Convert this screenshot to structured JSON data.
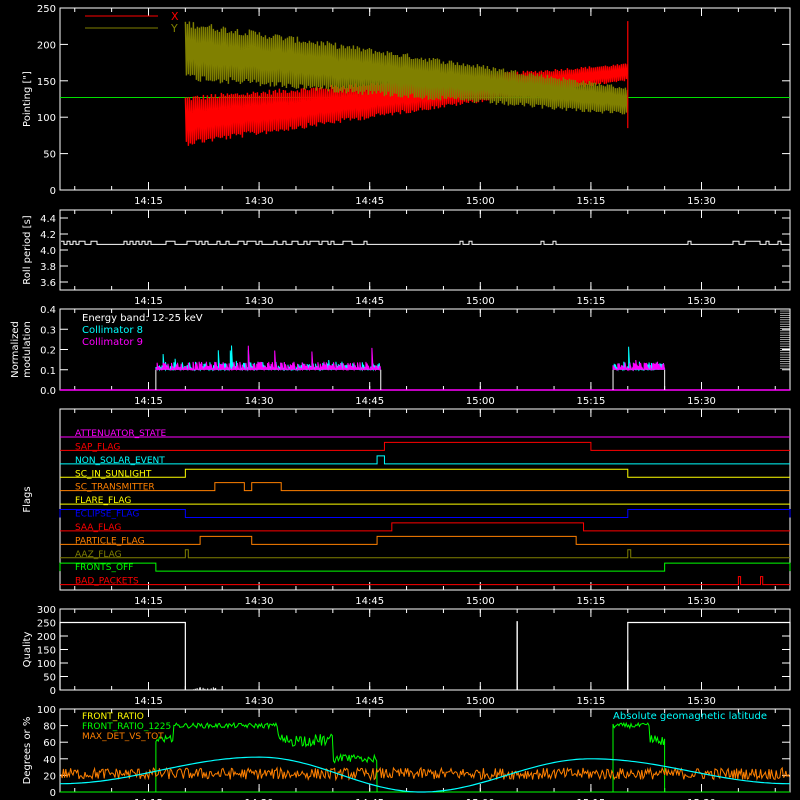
{
  "colors": {
    "background": "#000000",
    "axes": "#ffffff",
    "red": "#ff0000",
    "olive": "#808000",
    "white": "#ffffff",
    "cyan": "#00ffff",
    "magenta": "#ff00ff",
    "green": "#00ff00",
    "orange": "#ff8000",
    "yellow": "#ffff00",
    "blue": "#0000ff"
  },
  "time_ticks": [
    "14:15",
    "14:30",
    "14:45",
    "15:00",
    "15:15",
    "15:30"
  ],
  "chart_data": [
    {
      "type": "line",
      "panel": "pointing",
      "ylabel": "Pointing [\"]",
      "ylim": [
        0,
        250
      ],
      "yticks": [
        "0",
        "50",
        "100",
        "150",
        "200",
        "250"
      ],
      "xlim": [
        "14:03",
        "15:42"
      ],
      "legend_placement": "top-left",
      "series": [
        {
          "name": "X",
          "color": "red",
          "start": "14:20",
          "end": "15:20",
          "center_start": 95,
          "center_end": 162,
          "amp_start": 35,
          "amp_end": 12
        },
        {
          "name": "Y",
          "color": "olive",
          "start": "14:20",
          "end": "15:20",
          "center_start": 192,
          "center_end": 122,
          "amp_start": 42,
          "amp_end": 20
        }
      ],
      "reference_line": 127
    },
    {
      "type": "line",
      "panel": "roll",
      "ylabel": "Roll period [s]",
      "ylim": [
        3.5,
        4.5
      ],
      "yticks": [
        "3.6",
        "3.8",
        "4.0",
        "4.2",
        "4.4"
      ],
      "series": [
        {
          "name": "roll period",
          "color": "white",
          "baseline": 4.07,
          "jitter": 0.04
        }
      ]
    },
    {
      "type": "line",
      "panel": "modulation",
      "ylabel": "Normalized modulation",
      "ylim": [
        0,
        0.4
      ],
      "yticks": [
        "0.0",
        "0.1",
        "0.2",
        "0.3",
        "0.4"
      ],
      "annotation": "Energy band: 12-25 keV",
      "series": [
        {
          "name": "Collimator 8",
          "color": "cyan"
        },
        {
          "name": "Collimator 9",
          "color": "magenta"
        }
      ],
      "segments": [
        {
          "start": "14:16",
          "end": "14:46.5",
          "level": 0.1
        },
        {
          "start": "15:18",
          "end": "15:25",
          "level": 0.1
        }
      ]
    },
    {
      "type": "line",
      "panel": "flags",
      "ylabel": "Flags",
      "flags": [
        {
          "name": "ATTENUATOR_STATE",
          "color": "magenta",
          "on": []
        },
        {
          "name": "SAP_FLAG",
          "color": "red",
          "on": [
            [
              "14:47",
              "15:15"
            ]
          ]
        },
        {
          "name": "NON_SOLAR_EVENT",
          "color": "cyan",
          "on": [
            [
              "14:46",
              "14:47"
            ]
          ]
        },
        {
          "name": "SC_IN_SUNLIGHT",
          "color": "yellow",
          "on": [
            [
              "14:20",
              "15:20"
            ]
          ]
        },
        {
          "name": "SC_TRANSMITTER",
          "color": "orange",
          "on": [
            [
              "14:24",
              "14:28"
            ],
            [
              "14:29",
              "14:33"
            ]
          ]
        },
        {
          "name": "FLARE_FLAG",
          "color": "yellow",
          "on": []
        },
        {
          "name": "ECLIPSE_FLAG",
          "color": "blue",
          "on": [
            [
              "14:03",
              "14:20"
            ],
            [
              "15:20",
              "15:42"
            ]
          ]
        },
        {
          "name": "SAA_FLAG",
          "color": "red",
          "on": [
            [
              "14:48",
              "15:14"
            ]
          ]
        },
        {
          "name": "PARTICLE_FLAG",
          "color": "orange",
          "on": [
            [
              "14:22",
              "14:29"
            ],
            [
              "14:46",
              "15:13"
            ]
          ]
        },
        {
          "name": "AAZ_FLAG",
          "color": "olive",
          "on": [
            [
              "14:20",
              "14:20.4"
            ],
            [
              "15:20",
              "15:20.4"
            ]
          ]
        },
        {
          "name": "FRONTS_OFF",
          "color": "green",
          "on": [
            [
              "14:03",
              "14:16"
            ],
            [
              "15:25",
              "15:42"
            ]
          ]
        },
        {
          "name": "BAD_PACKETS",
          "color": "red",
          "on": [
            [
              "15:35",
              "15:35.3"
            ],
            [
              "15:38",
              "15:38.3"
            ]
          ]
        }
      ]
    },
    {
      "type": "line",
      "panel": "quality",
      "ylabel": "Quality",
      "ylim": [
        0,
        300
      ],
      "yticks": [
        "0",
        "50",
        "100",
        "150",
        "200",
        "250",
        "300"
      ],
      "series": [
        {
          "name": "quality",
          "color": "white",
          "high_level": 250,
          "high_segments": [
            [
              "14:03",
              "14:20"
            ],
            [
              "15:20",
              "15:42"
            ]
          ],
          "spikes": [
            [
              "15:05",
              255
            ],
            [
              "15:20",
              110
            ],
            [
              "14:22",
              10
            ],
            [
              "14:24",
              5
            ]
          ]
        }
      ]
    },
    {
      "type": "line",
      "panel": "fronts",
      "ylabel": "Degrees or %",
      "ylim": [
        0,
        100
      ],
      "yticks": [
        "0",
        "20",
        "40",
        "60",
        "80",
        "100"
      ],
      "series": [
        {
          "name": "FRONT_RATIO",
          "color": "yellow"
        },
        {
          "name": "FRONT_RATIO_1225",
          "color": "green",
          "segments": [
            [
              "14:16",
              "14:46"
            ],
            [
              "15:18",
              "15:25"
            ]
          ],
          "level": 80
        },
        {
          "name": "MAX_DET_VS_TOT",
          "color": "orange",
          "level": 22
        },
        {
          "name": "Absolute geomagnetic latitude",
          "color": "cyan",
          "peaks": [
            [
              "14:30",
              42
            ],
            [
              "15:15",
              40
            ]
          ],
          "minima": [
            [
              "14:03",
              10
            ],
            [
              "14:52",
              0
            ],
            [
              "15:42",
              10
            ]
          ]
        }
      ]
    }
  ]
}
